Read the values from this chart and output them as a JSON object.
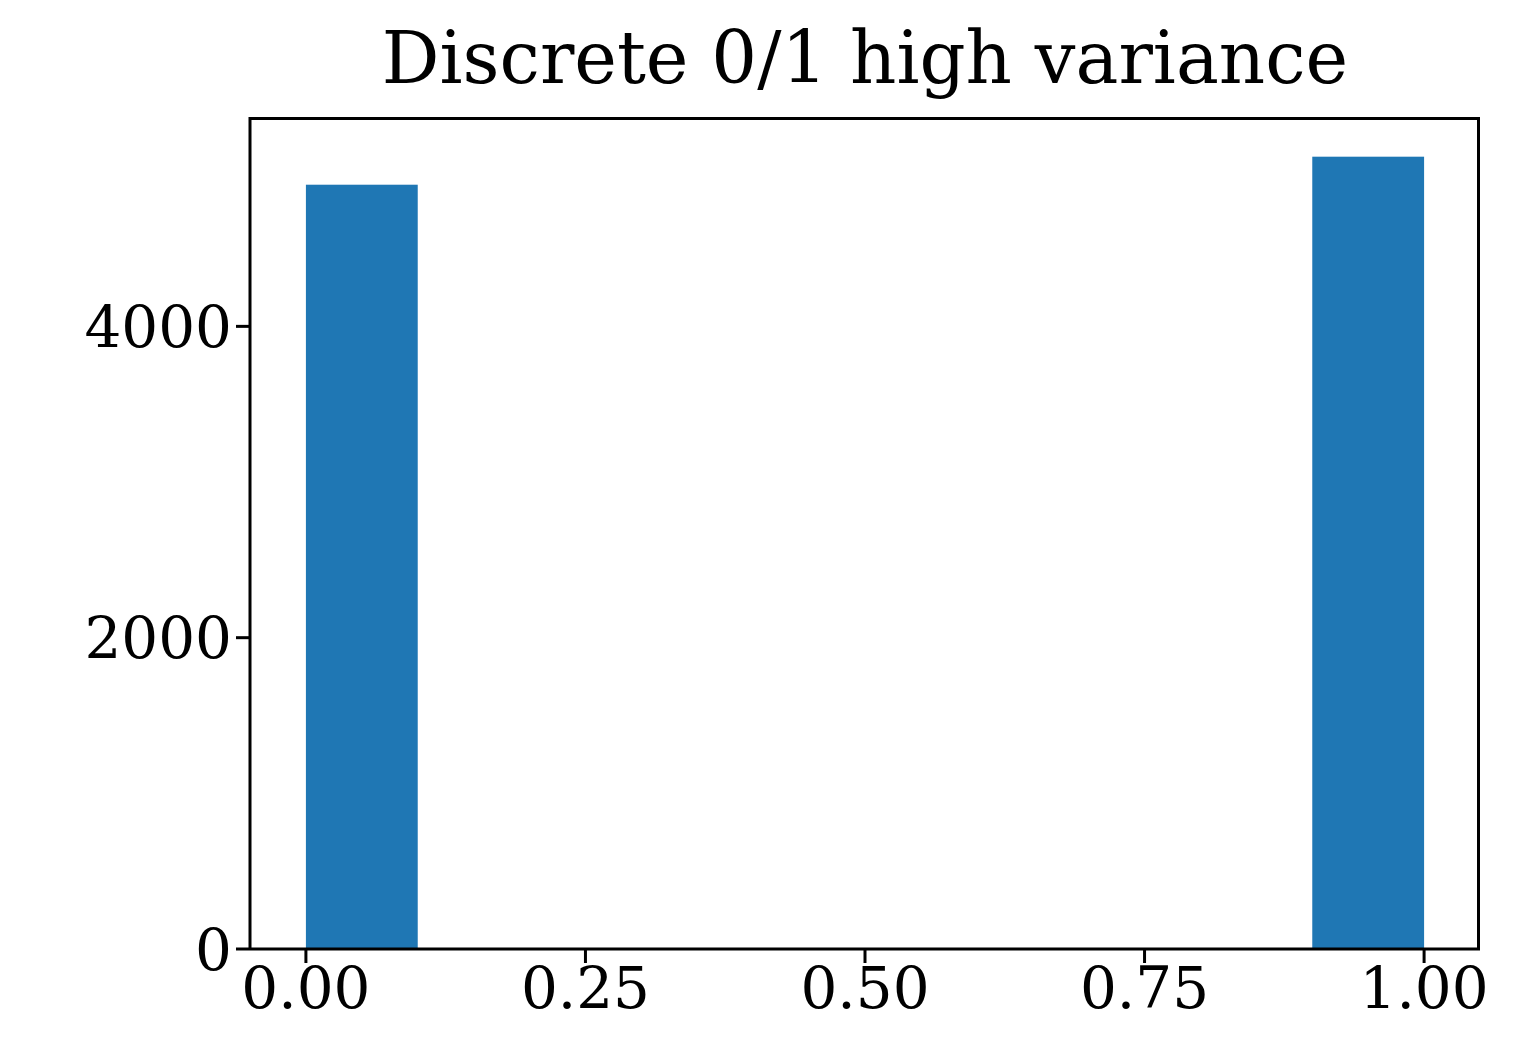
{
  "chart_data": {
    "type": "histogram",
    "title": "Discrete 0/1 high variance",
    "bins": [
      0,
      0.1,
      0.2,
      0.3,
      0.4,
      0.5,
      0.6,
      0.7,
      0.8,
      0.9,
      1.0
    ],
    "values": [
      4910,
      0,
      0,
      0,
      0,
      0,
      0,
      0,
      0,
      5090
    ],
    "color": "#1f77b4",
    "xlim": [
      -0.05,
      1.05
    ],
    "ylim": [
      0,
      5345
    ],
    "xticks": [
      {
        "value": 0,
        "label": "0.00"
      },
      {
        "value": 0.25,
        "label": "0.25"
      },
      {
        "value": 0.5,
        "label": "0.50"
      },
      {
        "value": 0.75,
        "label": "0.75"
      },
      {
        "value": 1,
        "label": "1.00"
      }
    ],
    "yticks": [
      0,
      2000,
      4000
    ],
    "grid": false,
    "legend": false
  }
}
